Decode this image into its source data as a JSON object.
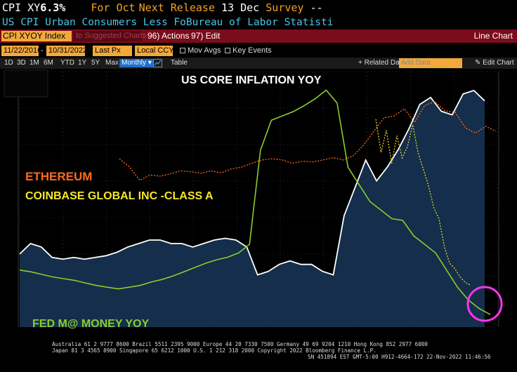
{
  "header": {
    "ticker": "CPI XY",
    "value": "6.3%",
    "for_label": "For Oct",
    "next_release_label": "Next Release",
    "next_release_date": "13 Dec",
    "survey_label": "Survey",
    "survey_value": "--",
    "description": "US CPI Urban Consumers Less Fo",
    "source": "Bureau of Labor Statisti"
  },
  "toolbar": {
    "security_field": "CPI XYOY Index",
    "suggest_field": "to Suggested Charts",
    "actions_label": "96) Actions",
    "edit_label": "97) Edit",
    "chart_title": "Line Chart"
  },
  "controls": {
    "start_date": "11/22/2016",
    "end_date": "10/31/2022",
    "price_field": "Last Px",
    "currency": "Local CCY",
    "mov_avgs": "Mov Avgs",
    "key_events": "Key Events"
  },
  "periods": {
    "items": [
      "1D",
      "3D",
      "1M",
      "6M",
      "YTD",
      "1Y",
      "5Y",
      "Max"
    ],
    "selected": "Monthly",
    "table": "Table",
    "related_data": "Related Dat",
    "add_data_placeholder": "Add Data",
    "edit_chart": "Edit Chart"
  },
  "annotations": {
    "main_title": "US CORE INFLATION YOY",
    "ethereum": "ETHEREUM",
    "coinbase": "COINBASE GLOBAL INC -CLASS A",
    "fed": "FED M@ MONEY YOY"
  },
  "colors": {
    "core_inflation": "#ffffff",
    "area_fill": "#15304f",
    "money_supply": "#8ccc2a",
    "ethereum": "#ff6a1a",
    "coinbase": "#e8d22a",
    "highlight_circle": "#ff33ee",
    "annotation_blue": "#ffffff",
    "annotation_orange": "#ff6a1a",
    "annotation_yellow": "#f5e62a",
    "annotation_green": "#8ccc2a"
  },
  "chart_data": {
    "type": "line",
    "title": "US CORE INFLATION YOY",
    "series": [
      {
        "name": "US CORE INFLATION YOY",
        "style": "area",
        "values": [
          1.9,
          2.2,
          2.1,
          1.8,
          1.75,
          1.8,
          1.75,
          1.8,
          1.85,
          1.95,
          2.1,
          2.2,
          2.3,
          2.3,
          2.2,
          2.2,
          2.1,
          2.2,
          2.3,
          2.35,
          2.3,
          2.1,
          1.3,
          1.4,
          1.6,
          1.7,
          1.6,
          1.6,
          1.4,
          1.3,
          3.0,
          3.8,
          4.6,
          4.0,
          4.4,
          4.9,
          5.5,
          6.2,
          6.4,
          6.0,
          5.9,
          6.5,
          6.6,
          6.3
        ]
      },
      {
        "name": "FED M@ MONEY YOY",
        "style": "line",
        "values": [
          6.0,
          5.8,
          5.5,
          5.2,
          5.0,
          4.8,
          4.5,
          4.2,
          4.0,
          3.8,
          4.0,
          4.2,
          4.6,
          4.9,
          5.3,
          5.8,
          6.3,
          6.8,
          7.2,
          7.5,
          8.0,
          9.0,
          20.0,
          23.5,
          24.0,
          24.5,
          25.2,
          26.0,
          27.0,
          25.5,
          18.0,
          16.0,
          14.0,
          13.0,
          12.0,
          11.8,
          10.0,
          9.0,
          8.0,
          6.0,
          4.0,
          2.5,
          1.5,
          0.8
        ]
      },
      {
        "name": "ETHEREUM",
        "style": "dotted",
        "values": [
          400,
          280,
          160,
          200,
          190,
          210,
          240,
          230,
          215,
          240,
          220,
          260,
          280,
          330,
          380,
          400,
          380,
          330,
          360,
          350,
          380,
          420,
          380,
          460,
          720,
          1300,
          2300,
          2500,
          3400,
          1900,
          3900,
          4600,
          3100,
          2900,
          1500,
          1200,
          1600,
          1300
        ]
      },
      {
        "name": "COINBASE GLOBAL INC -CLASS A",
        "style": "dotted",
        "values": [
          340,
          280,
          320,
          260,
          310,
          270,
          290,
          330,
          280,
          250,
          220,
          180,
          160,
          110,
          80,
          70,
          55,
          45,
          40
        ]
      }
    ]
  },
  "footer": {
    "line1": "Australia 61 2 9777 8600 Brazil 5511 2395 9000 Europe 44 20 7330 7500 Germany 49 69 9204 1210 Hong Kong 852 2977 6000",
    "line2": "Japan 81 3 4565 8900       Singapore 65 6212 1000       U.S. 1 212 318 2000         Copyright 2022 Bloomberg Finance L.P.",
    "line3": "SN 451894 EST  GMT-5:00 H912-4664-172 22-Nov-2022 11:46:56"
  }
}
